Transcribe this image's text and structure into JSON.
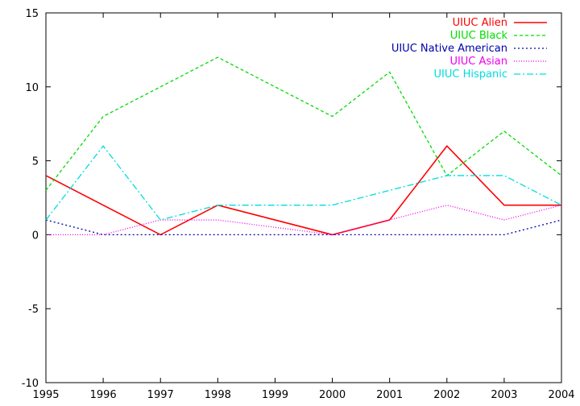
{
  "chart_data": {
    "type": "line",
    "title": "",
    "xlabel": "",
    "ylabel": "",
    "x": [
      1995,
      1996,
      1997,
      1998,
      1999,
      2000,
      2001,
      2002,
      2003,
      2004
    ],
    "xlim": [
      1995,
      2004
    ],
    "ylim": [
      -10,
      15
    ],
    "xticks": [
      "1995",
      "1996",
      "1997",
      "1998",
      "1999",
      "2000",
      "2001",
      "2002",
      "2003",
      "2004"
    ],
    "yticks": [
      "-10",
      "-5",
      "0",
      "5",
      "10",
      "15"
    ],
    "grid": false,
    "legend_position": "top-right",
    "series": [
      {
        "name": "UIUC Alien",
        "color": "#ff0000",
        "dash": "solid",
        "values": [
          4,
          2,
          0,
          2,
          1,
          0,
          1,
          6,
          2,
          2
        ]
      },
      {
        "name": "UIUC Black",
        "color": "#00dd00",
        "dash": "dashed",
        "values": [
          3,
          8,
          10,
          12,
          10,
          8,
          11,
          4,
          7,
          4
        ]
      },
      {
        "name": "UIUC Native American",
        "color": "#0000aa",
        "dash": "dotted",
        "values": [
          1,
          0,
          0,
          0,
          0,
          0,
          0,
          0,
          0,
          1
        ]
      },
      {
        "name": "UIUC Asian",
        "color": "#ee00ee",
        "dash": "fine-dotted",
        "values": [
          0,
          0,
          1,
          1,
          0.5,
          0,
          1,
          2,
          1,
          2
        ]
      },
      {
        "name": "UIUC Hispanic",
        "color": "#00dddd",
        "dash": "dash-dot",
        "values": [
          1,
          6,
          1,
          2,
          2,
          2,
          3,
          4,
          4,
          2
        ]
      }
    ]
  }
}
